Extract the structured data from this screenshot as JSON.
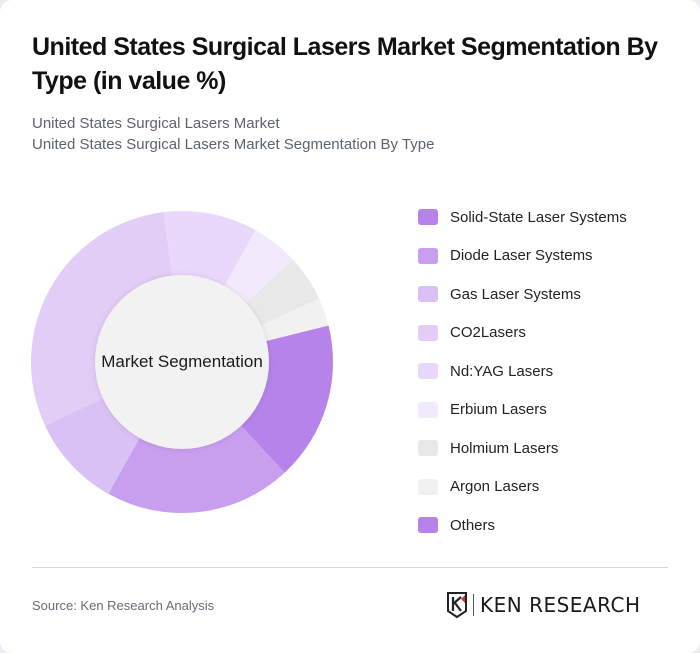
{
  "header": {
    "title": "United States Surgical Lasers Market Segmentation By Type (in value %)",
    "subtitle_line1": "United States Surgical Lasers Market",
    "subtitle_line2": "United States Surgical Lasers Market Segmentation By Type"
  },
  "chart": {
    "center_label": "Market Segmentation"
  },
  "legend": {
    "items": [
      {
        "label": "Solid-State Laser Systems",
        "color": "#b683ea"
      },
      {
        "label": "Diode Laser Systems",
        "color": "#c89eef"
      },
      {
        "label": "Gas Laser Systems",
        "color": "#dac1f5"
      },
      {
        "label": "CO2Lasers",
        "color": "#e2cdf7"
      },
      {
        "label": "Nd:YAG Lasers",
        "color": "#e9d8fb"
      },
      {
        "label": "Erbium Lasers",
        "color": "#f2eafc"
      },
      {
        "label": "Holmium Lasers",
        "color": "#e8e8e8"
      },
      {
        "label": "Argon Lasers",
        "color": "#f1f1f1"
      },
      {
        "label": "Others",
        "color": "#b683ea"
      }
    ]
  },
  "footer": {
    "source": "Source: Ken Research Analysis",
    "logo_text": "KEN RESEARCH"
  },
  "chart_data": {
    "type": "pie",
    "title": "United States Surgical Lasers Market Segmentation By Type (in value %)",
    "subtitle": "United States Surgical Lasers Market Segmentation By Type",
    "center_label": "Market Segmentation",
    "categories": [
      "Solid-State Laser Systems",
      "Diode Laser Systems",
      "Gas Laser Systems",
      "CO2Lasers",
      "Nd:YAG Lasers",
      "Erbium Lasers",
      "Holmium Lasers",
      "Argon Lasers",
      "Others"
    ],
    "values": [
      17,
      20,
      10,
      30,
      10,
      5,
      5,
      3,
      0
    ],
    "colors": [
      "#b683ea",
      "#c89eef",
      "#dac1f5",
      "#e2cdf7",
      "#e9d8fb",
      "#f2eafc",
      "#e8e8e8",
      "#f1f1f1",
      "#b683ea"
    ],
    "start_angle_deg": 76,
    "donut": true,
    "legend_position": "right"
  }
}
